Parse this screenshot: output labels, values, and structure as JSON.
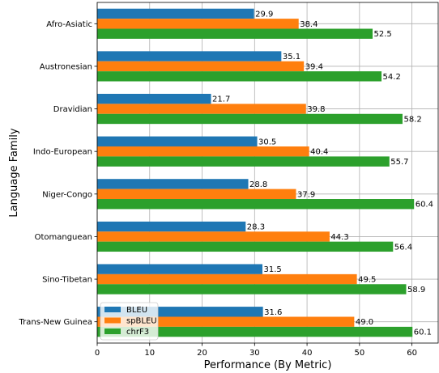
{
  "chart_data": {
    "type": "bar",
    "orientation": "horizontal",
    "title": "",
    "xlabel": "Performance (By Metric)",
    "ylabel": "Language Family",
    "xlim": [
      0,
      65
    ],
    "xticks": [
      0,
      10,
      20,
      30,
      40,
      50,
      60
    ],
    "grid": true,
    "legend_position": "lower-left",
    "categories": [
      "Afro-Asiatic",
      "Austronesian",
      "Dravidian",
      "Indo-European",
      "Niger-Congo",
      "Otomanguean",
      "Sino-Tibetan",
      "Trans-New Guinea"
    ],
    "series": [
      {
        "name": "BLEU",
        "color": "#1f77b4",
        "values": [
          29.9,
          35.1,
          21.7,
          30.5,
          28.8,
          28.3,
          31.5,
          31.6
        ]
      },
      {
        "name": "spBLEU",
        "color": "#ff7f0e",
        "values": [
          38.4,
          39.4,
          39.8,
          40.4,
          37.9,
          44.3,
          49.5,
          49.0
        ]
      },
      {
        "name": "chrF3",
        "color": "#2ca02c",
        "values": [
          52.5,
          54.2,
          58.2,
          55.7,
          60.4,
          56.4,
          58.9,
          60.1
        ]
      }
    ]
  }
}
